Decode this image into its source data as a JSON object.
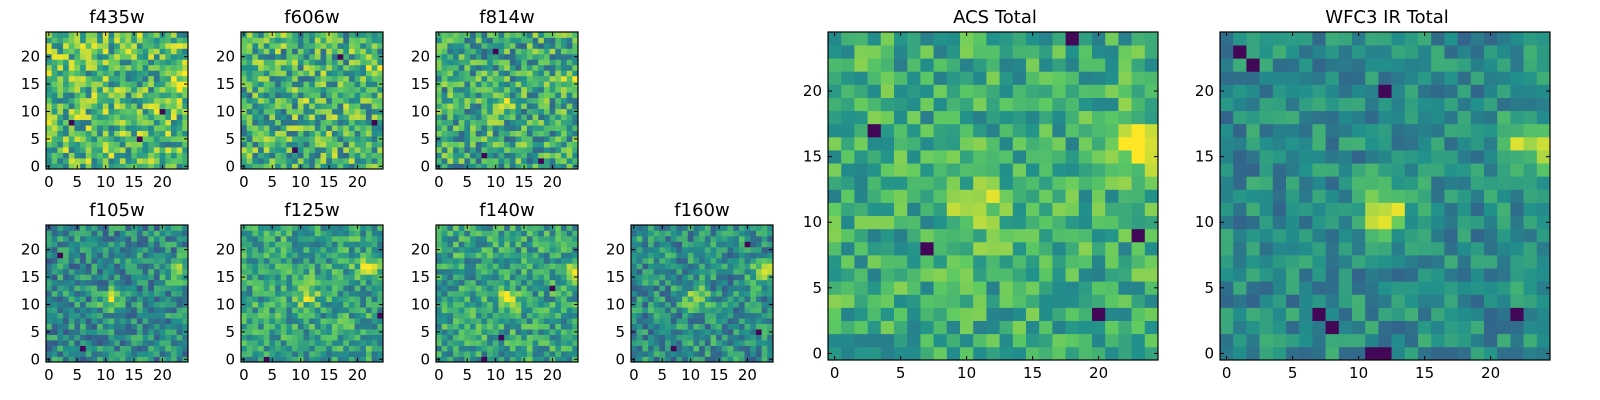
{
  "colormap": [
    "#440154",
    "#3b528b",
    "#21918c",
    "#5ec962",
    "#fde725"
  ],
  "chart_data": [
    {
      "type": "heatmap",
      "title": "f435w",
      "grid_size": 25,
      "x_ticks": [
        0,
        5,
        10,
        15,
        20
      ],
      "y_ticks": [
        0,
        5,
        10,
        15,
        20
      ],
      "seed": 11,
      "noise": 0.3,
      "base": 0.68,
      "blobs": [
        [
          23,
          16,
          0.2
        ]
      ],
      "dark": [
        [
          4,
          8
        ],
        [
          20,
          10
        ],
        [
          16,
          5
        ]
      ]
    },
    {
      "type": "heatmap",
      "title": "f606w",
      "grid_size": 25,
      "x_ticks": [
        0,
        5,
        10,
        15,
        20
      ],
      "y_ticks": [
        0,
        5,
        10,
        15,
        20
      ],
      "seed": 23,
      "noise": 0.3,
      "base": 0.64,
      "blobs": [
        [
          23,
          17,
          0.25
        ],
        [
          12,
          11,
          0.1
        ]
      ],
      "dark": [
        [
          17,
          20
        ],
        [
          9,
          3
        ],
        [
          23,
          8
        ]
      ]
    },
    {
      "type": "heatmap",
      "title": "f814w",
      "grid_size": 25,
      "x_ticks": [
        0,
        5,
        10,
        15,
        20
      ],
      "y_ticks": [
        0,
        5,
        10,
        15,
        20
      ],
      "seed": 37,
      "noise": 0.28,
      "base": 0.6,
      "blobs": [
        [
          23,
          16,
          0.3
        ],
        [
          11,
          11,
          0.25
        ]
      ],
      "dark": [
        [
          8,
          2
        ],
        [
          18,
          1
        ],
        [
          10,
          21
        ]
      ]
    },
    {
      "type": "heatmap",
      "title": "f105w",
      "grid_size": 25,
      "x_ticks": [
        0,
        5,
        10,
        15,
        20
      ],
      "y_ticks": [
        0,
        5,
        10,
        15,
        20
      ],
      "seed": 41,
      "noise": 0.22,
      "base": 0.48,
      "blobs": [
        [
          23,
          16,
          0.35
        ],
        [
          11,
          11,
          0.35
        ]
      ],
      "dark": [
        [
          6,
          2
        ],
        [
          2,
          19
        ]
      ]
    },
    {
      "type": "heatmap",
      "title": "f125w",
      "grid_size": 25,
      "x_ticks": [
        0,
        5,
        10,
        15,
        20
      ],
      "y_ticks": [
        0,
        5,
        10,
        15,
        20
      ],
      "seed": 53,
      "noise": 0.22,
      "base": 0.58,
      "blobs": [
        [
          22,
          17,
          0.35
        ],
        [
          11,
          12,
          0.3
        ]
      ],
      "dark": [
        [
          24,
          8
        ],
        [
          4,
          0
        ]
      ]
    },
    {
      "type": "heatmap",
      "title": "f140w",
      "grid_size": 25,
      "x_ticks": [
        0,
        5,
        10,
        15,
        20
      ],
      "y_ticks": [
        0,
        5,
        10,
        15,
        20
      ],
      "seed": 67,
      "noise": 0.22,
      "base": 0.58,
      "blobs": [
        [
          24,
          16,
          0.35
        ],
        [
          12,
          11,
          0.3
        ]
      ],
      "dark": [
        [
          8,
          0
        ],
        [
          11,
          4
        ],
        [
          20,
          13
        ]
      ]
    },
    {
      "type": "heatmap",
      "title": "f160w",
      "grid_size": 25,
      "x_ticks": [
        0,
        5,
        10,
        15,
        20
      ],
      "y_ticks": [
        0,
        5,
        10,
        15,
        20
      ],
      "seed": 79,
      "noise": 0.22,
      "base": 0.5,
      "blobs": [
        [
          23,
          16,
          0.4
        ],
        [
          11,
          11,
          0.38
        ]
      ],
      "dark": [
        [
          7,
          2
        ],
        [
          20,
          21
        ],
        [
          22,
          5
        ]
      ]
    },
    {
      "type": "heatmap",
      "title": "ACS Total",
      "grid_size": 25,
      "x_ticks": [
        0,
        5,
        10,
        15,
        20
      ],
      "y_ticks": [
        0,
        5,
        10,
        15,
        20
      ],
      "seed": 97,
      "noise": 0.2,
      "base": 0.62,
      "blobs": [
        [
          23,
          16,
          0.35
        ],
        [
          11,
          11,
          0.3
        ]
      ],
      "dark": [
        [
          7,
          8
        ],
        [
          3,
          17
        ],
        [
          18,
          24
        ],
        [
          20,
          3
        ],
        [
          23,
          9
        ]
      ]
    },
    {
      "type": "heatmap",
      "title": "WFC3 IR Total",
      "grid_size": 25,
      "x_ticks": [
        0,
        5,
        10,
        15,
        20
      ],
      "y_ticks": [
        0,
        5,
        10,
        15,
        20
      ],
      "seed": 113,
      "noise": 0.16,
      "base": 0.48,
      "blobs": [
        [
          23,
          16,
          0.42
        ],
        [
          12,
          11,
          0.45
        ]
      ],
      "dark": [
        [
          1,
          23
        ],
        [
          2,
          22
        ],
        [
          12,
          20
        ],
        [
          7,
          3
        ],
        [
          8,
          2
        ],
        [
          11,
          0
        ],
        [
          12,
          0
        ],
        [
          22,
          3
        ]
      ]
    }
  ]
}
